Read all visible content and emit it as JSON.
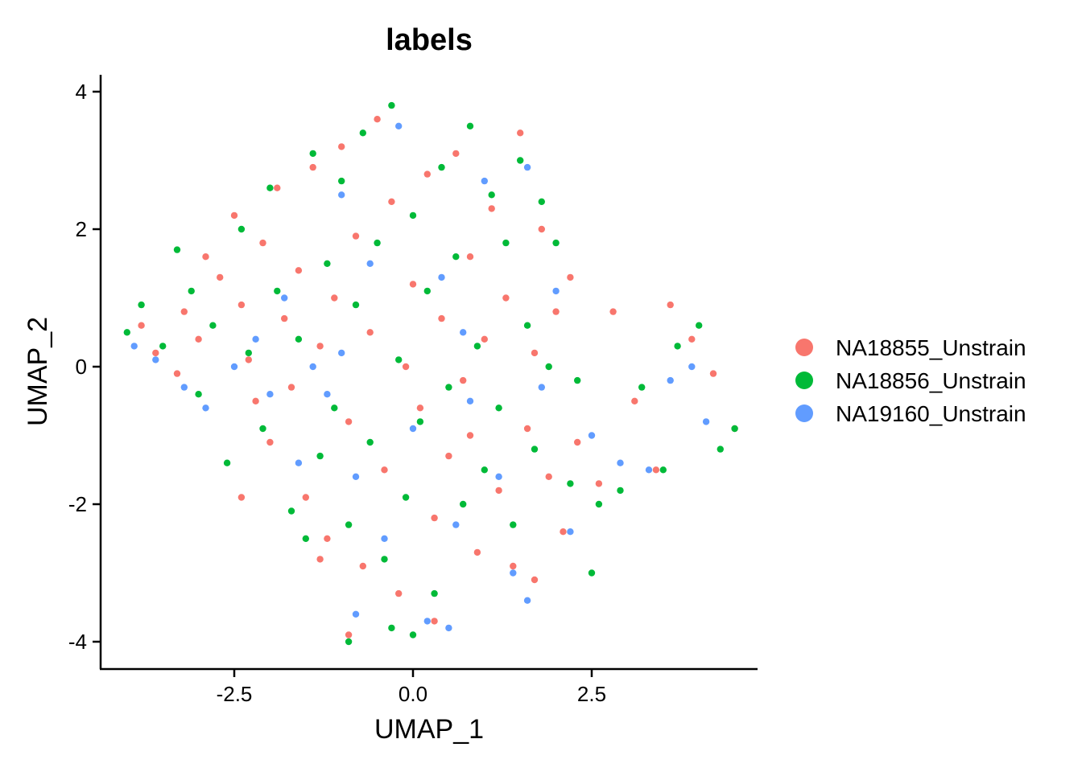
{
  "chart_data": {
    "type": "scatter",
    "title": "labels",
    "xlabel": "UMAP_1",
    "ylabel": "UMAP_2",
    "xlim": [
      -4.4,
      4.9
    ],
    "ylim": [
      -4.4,
      4.3
    ],
    "xticks": [
      -2.5,
      0.0,
      2.5
    ],
    "xtick_labels": [
      "-2.5",
      "0.0",
      "2.5"
    ],
    "yticks": [
      4,
      2,
      0,
      -2,
      -4
    ],
    "ytick_labels": [
      "4",
      "2",
      "0",
      "-2",
      "-4"
    ],
    "grid": false,
    "legend_position": "right",
    "series": [
      {
        "name": "NA18855_Unstrain",
        "color": "#F8766D",
        "points": [
          [
            -3.8,
            0.6
          ],
          [
            -3.6,
            0.2
          ],
          [
            -3.3,
            -0.1
          ],
          [
            -3.2,
            0.8
          ],
          [
            -3.0,
            0.4
          ],
          [
            -2.9,
            1.6
          ],
          [
            -2.7,
            1.3
          ],
          [
            -2.5,
            2.2
          ],
          [
            -2.4,
            0.9
          ],
          [
            -2.3,
            0.1
          ],
          [
            -2.2,
            -0.5
          ],
          [
            -2.1,
            1.8
          ],
          [
            -2.0,
            -1.1
          ],
          [
            -1.9,
            2.6
          ],
          [
            -1.8,
            0.7
          ],
          [
            -1.7,
            -0.3
          ],
          [
            -1.6,
            1.4
          ],
          [
            -1.5,
            -1.9
          ],
          [
            -1.4,
            2.9
          ],
          [
            -1.3,
            0.3
          ],
          [
            -1.2,
            -2.5
          ],
          [
            -1.1,
            1.0
          ],
          [
            -1.0,
            3.2
          ],
          [
            -0.9,
            -0.8
          ],
          [
            -0.8,
            1.9
          ],
          [
            -0.7,
            -2.9
          ],
          [
            -0.6,
            0.5
          ],
          [
            -0.5,
            3.6
          ],
          [
            -0.4,
            -1.5
          ],
          [
            -0.3,
            2.4
          ],
          [
            -0.2,
            -3.3
          ],
          [
            -0.1,
            0.0
          ],
          [
            0.0,
            1.2
          ],
          [
            0.1,
            -0.6
          ],
          [
            0.2,
            2.8
          ],
          [
            0.3,
            -2.2
          ],
          [
            0.4,
            0.7
          ],
          [
            0.5,
            -1.3
          ],
          [
            0.6,
            3.1
          ],
          [
            0.7,
            -0.2
          ],
          [
            0.8,
            1.6
          ],
          [
            0.9,
            -2.7
          ],
          [
            1.0,
            0.4
          ],
          [
            1.1,
            2.3
          ],
          [
            1.2,
            -1.8
          ],
          [
            1.3,
            1.0
          ],
          [
            1.4,
            -2.9
          ],
          [
            1.5,
            3.4
          ],
          [
            1.6,
            -0.9
          ],
          [
            1.7,
            0.2
          ],
          [
            1.8,
            2.0
          ],
          [
            1.9,
            -1.6
          ],
          [
            2.0,
            0.8
          ],
          [
            2.1,
            -2.4
          ],
          [
            2.2,
            1.3
          ],
          [
            2.3,
            -1.1
          ],
          [
            2.6,
            -1.7
          ],
          [
            2.8,
            0.8
          ],
          [
            3.1,
            -0.5
          ],
          [
            3.4,
            -1.5
          ],
          [
            3.6,
            0.9
          ],
          [
            3.9,
            0.4
          ],
          [
            4.2,
            -0.1
          ],
          [
            4.5,
            -0.9
          ],
          [
            -0.9,
            -3.9
          ],
          [
            0.3,
            -3.7
          ],
          [
            -2.4,
            -1.9
          ],
          [
            -1.3,
            -2.8
          ],
          [
            1.7,
            -3.1
          ],
          [
            0.8,
            -1.0
          ]
        ]
      },
      {
        "name": "NA18856_Unstrain",
        "color": "#00BA38",
        "points": [
          [
            -4.0,
            0.5
          ],
          [
            -3.8,
            0.9
          ],
          [
            -3.5,
            0.3
          ],
          [
            -3.3,
            1.7
          ],
          [
            -3.1,
            1.1
          ],
          [
            -3.0,
            -0.4
          ],
          [
            -2.8,
            0.6
          ],
          [
            -2.6,
            -1.4
          ],
          [
            -2.4,
            2.0
          ],
          [
            -2.3,
            0.2
          ],
          [
            -2.1,
            -0.9
          ],
          [
            -2.0,
            2.6
          ],
          [
            -1.9,
            1.1
          ],
          [
            -1.7,
            -2.1
          ],
          [
            -1.6,
            0.4
          ],
          [
            -1.4,
            3.1
          ],
          [
            -1.3,
            -1.3
          ],
          [
            -1.2,
            1.5
          ],
          [
            -1.1,
            -0.6
          ],
          [
            -1.0,
            2.7
          ],
          [
            -0.9,
            -2.3
          ],
          [
            -0.8,
            0.9
          ],
          [
            -0.7,
            3.4
          ],
          [
            -0.6,
            -1.1
          ],
          [
            -0.5,
            1.8
          ],
          [
            -0.4,
            -2.8
          ],
          [
            -0.3,
            3.8
          ],
          [
            -0.2,
            0.1
          ],
          [
            -0.1,
            -1.9
          ],
          [
            0.0,
            2.2
          ],
          [
            0.1,
            -0.8
          ],
          [
            0.2,
            1.1
          ],
          [
            0.3,
            -3.3
          ],
          [
            0.4,
            2.9
          ],
          [
            0.5,
            -0.3
          ],
          [
            0.6,
            1.6
          ],
          [
            0.7,
            -2.0
          ],
          [
            0.8,
            3.5
          ],
          [
            0.9,
            0.3
          ],
          [
            1.0,
            -1.5
          ],
          [
            1.1,
            2.5
          ],
          [
            1.2,
            -0.6
          ],
          [
            1.3,
            1.8
          ],
          [
            1.4,
            -2.3
          ],
          [
            1.5,
            3.0
          ],
          [
            1.6,
            0.6
          ],
          [
            1.7,
            -1.2
          ],
          [
            1.8,
            2.4
          ],
          [
            1.9,
            0.0
          ],
          [
            2.0,
            1.8
          ],
          [
            2.2,
            -1.7
          ],
          [
            2.5,
            -3.0
          ],
          [
            2.6,
            -2.0
          ],
          [
            2.9,
            -1.8
          ],
          [
            3.2,
            -0.3
          ],
          [
            3.5,
            -1.5
          ],
          [
            3.7,
            0.3
          ],
          [
            4.0,
            0.6
          ],
          [
            4.3,
            -1.2
          ],
          [
            4.5,
            -0.9
          ],
          [
            -0.9,
            -4.0
          ],
          [
            -0.3,
            -3.8
          ],
          [
            -1.5,
            -2.5
          ],
          [
            2.3,
            -0.2
          ],
          [
            0.0,
            -3.9
          ]
        ]
      },
      {
        "name": "NA19160_Unstrain",
        "color": "#619CFF",
        "points": [
          [
            -3.9,
            0.3
          ],
          [
            -3.6,
            0.1
          ],
          [
            -3.2,
            -0.3
          ],
          [
            -2.9,
            -0.6
          ],
          [
            -2.5,
            0.0
          ],
          [
            -2.2,
            0.4
          ],
          [
            -2.0,
            -0.4
          ],
          [
            -1.8,
            1.0
          ],
          [
            -1.6,
            -1.4
          ],
          [
            -1.4,
            0.0
          ],
          [
            -1.2,
            -0.4
          ],
          [
            -1.0,
            2.5
          ],
          [
            -0.8,
            -1.6
          ],
          [
            -0.6,
            1.5
          ],
          [
            -0.4,
            -2.5
          ],
          [
            -0.2,
            3.5
          ],
          [
            0.0,
            -0.9
          ],
          [
            0.2,
            -3.7
          ],
          [
            0.4,
            1.3
          ],
          [
            0.6,
            -2.3
          ],
          [
            0.8,
            -0.5
          ],
          [
            1.0,
            2.7
          ],
          [
            1.2,
            -1.6
          ],
          [
            1.4,
            -3.0
          ],
          [
            1.6,
            2.9
          ],
          [
            1.8,
            -0.3
          ],
          [
            2.0,
            1.1
          ],
          [
            2.2,
            -2.4
          ],
          [
            2.5,
            -1.0
          ],
          [
            2.9,
            -1.4
          ],
          [
            3.3,
            -1.5
          ],
          [
            3.6,
            -0.2
          ],
          [
            3.9,
            0.0
          ],
          [
            4.1,
            -0.8
          ],
          [
            -0.8,
            -3.6
          ],
          [
            0.5,
            -3.8
          ],
          [
            1.6,
            -3.4
          ],
          [
            -1.0,
            0.2
          ],
          [
            0.7,
            0.5
          ]
        ]
      }
    ]
  },
  "legend": {
    "items": [
      {
        "label": "NA18855_Unstrain",
        "color": "#F8766D"
      },
      {
        "label": "NA18856_Unstrain",
        "color": "#00BA38"
      },
      {
        "label": "NA19160_Unstrain",
        "color": "#619CFF"
      }
    ]
  }
}
